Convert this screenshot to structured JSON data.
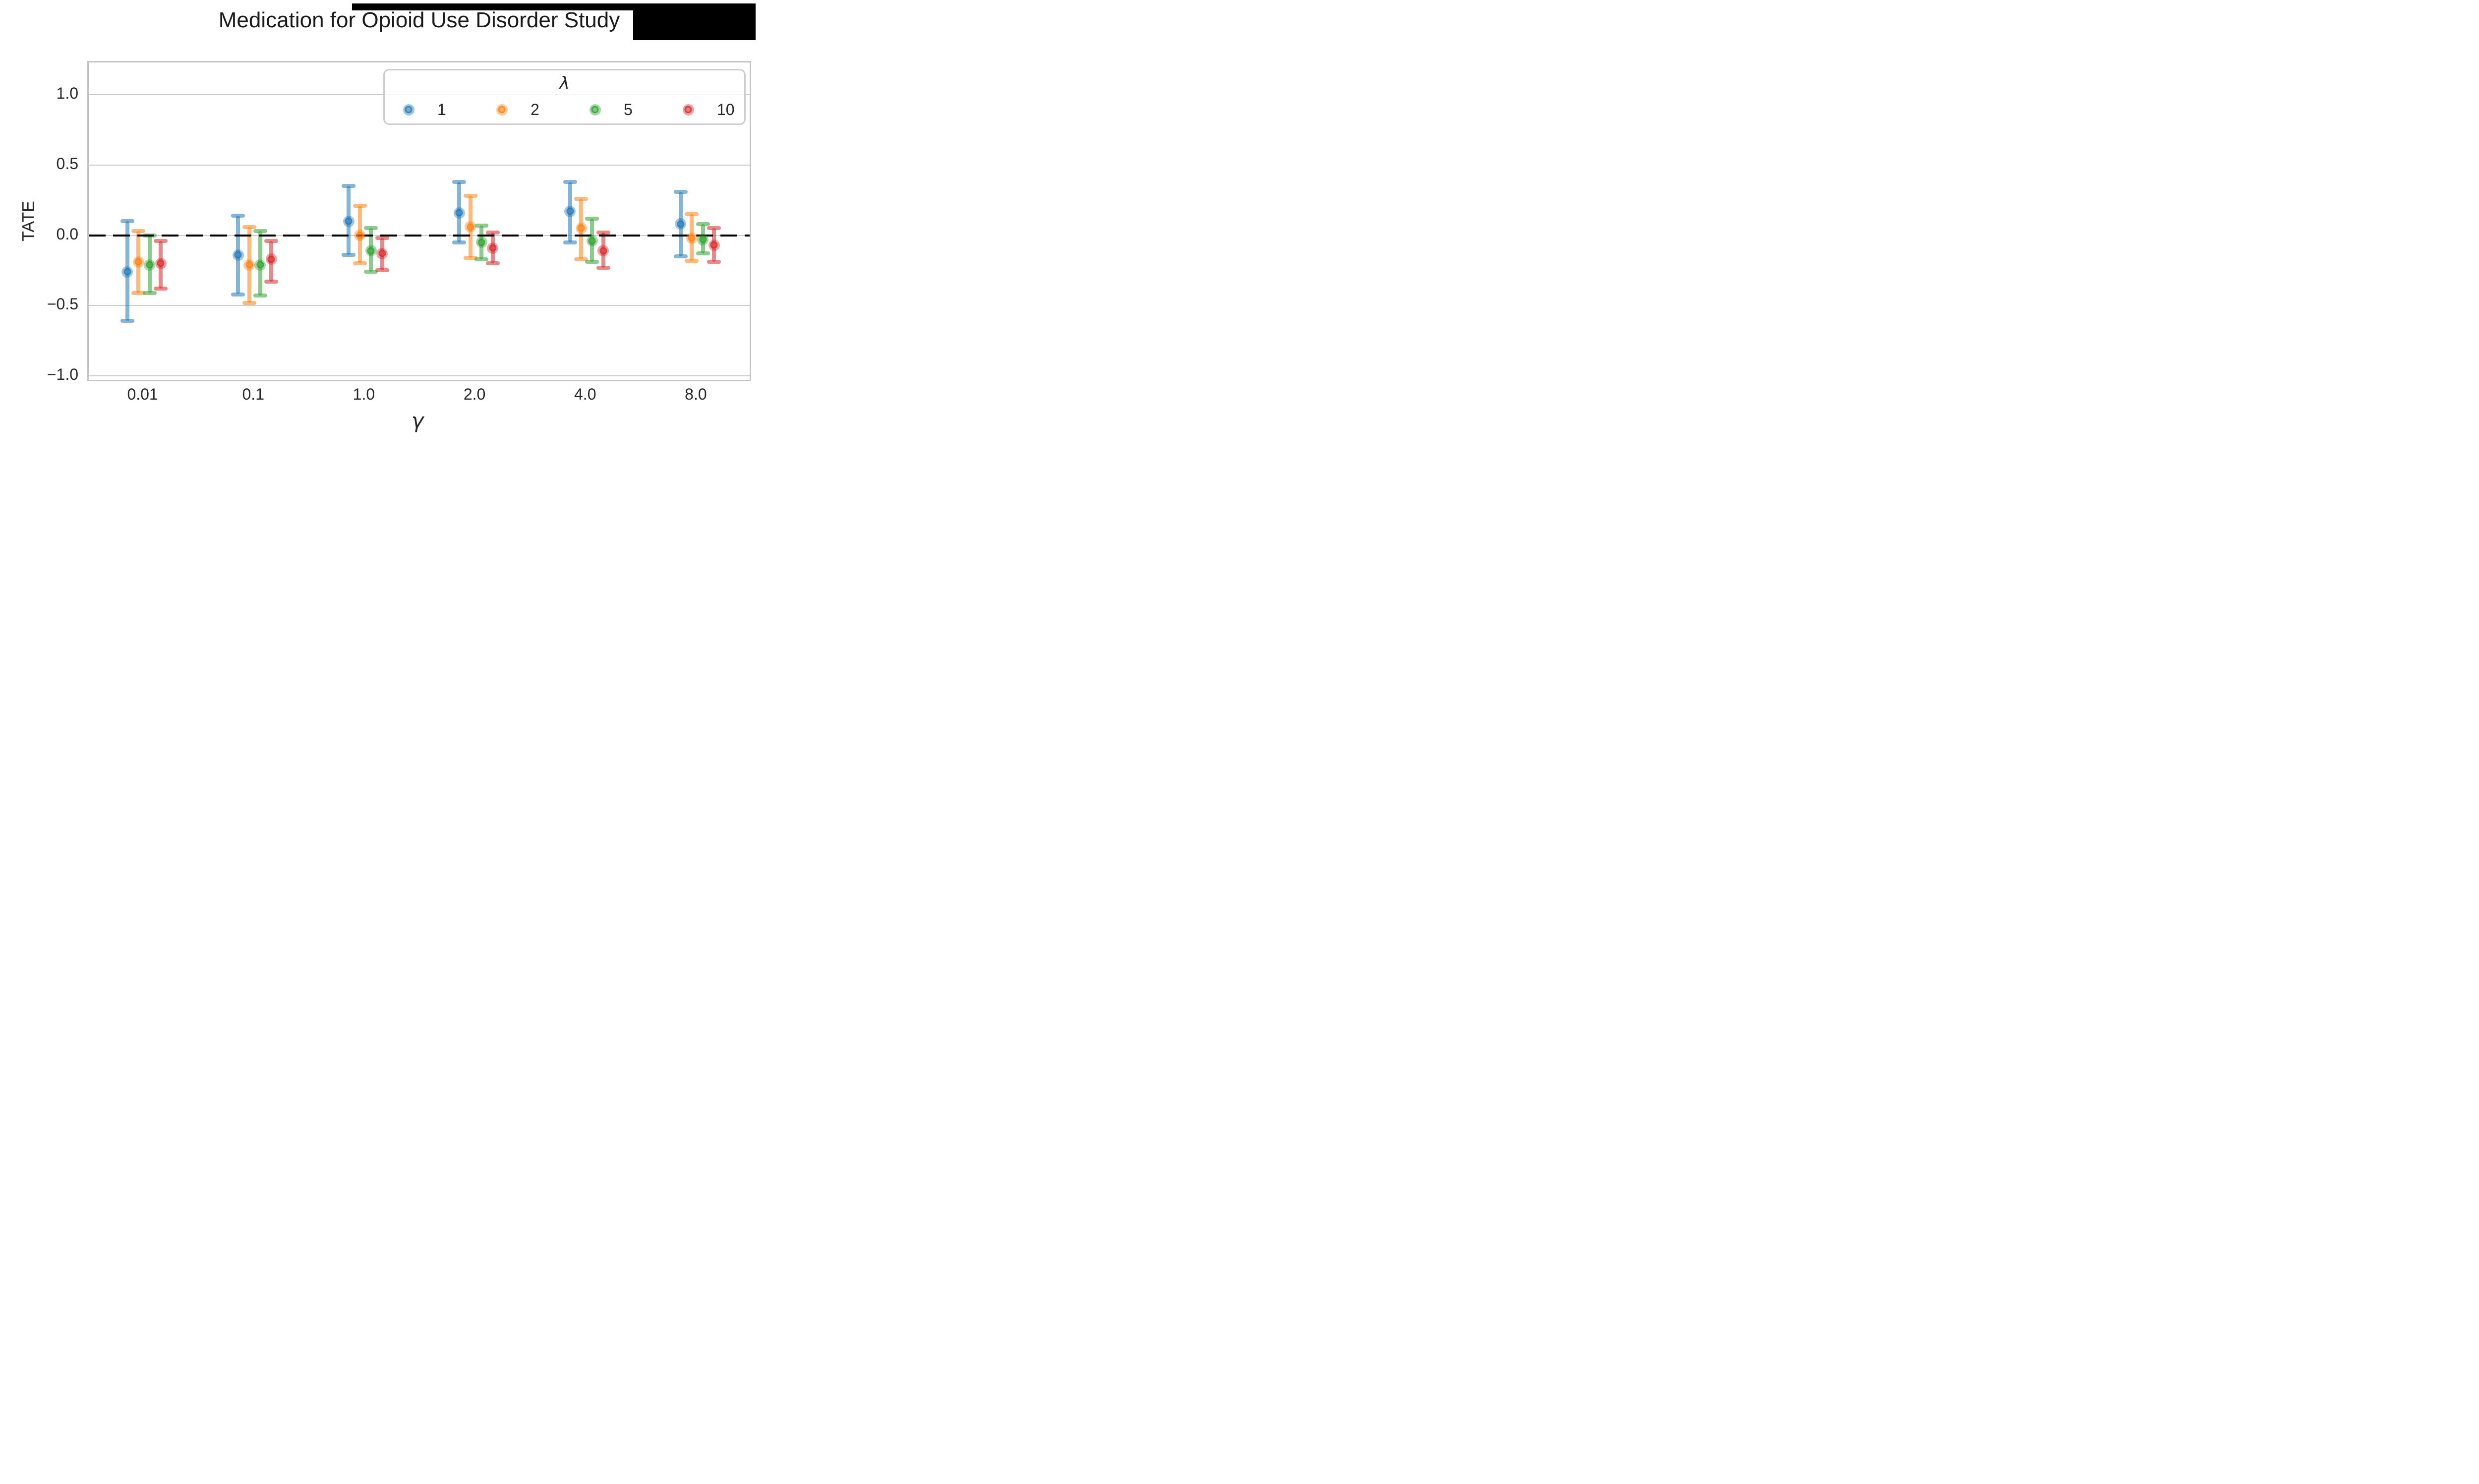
{
  "figure": {
    "title": "Medication for Opioid Use Disorder Study",
    "redaction_bars": 2
  },
  "chart_data": {
    "type": "scatter",
    "variant": "point-estimates-with-95ci-errorbars",
    "title": "Medication for Opioid Use Disorder Study",
    "xlabel": "γ",
    "ylabel": "TATE",
    "categories": [
      "0.01",
      "0.1",
      "1.0",
      "2.0",
      "4.0",
      "8.0"
    ],
    "yticks": [
      1.0,
      0.5,
      0.0,
      -0.5,
      -1.0
    ],
    "ytick_labels": [
      "1.0",
      "0.5",
      "0.0",
      "−0.5",
      "−1.0"
    ],
    "ylim": [
      -1.05,
      1.23
    ],
    "grid": true,
    "reference_line_y": 0.0,
    "reference_line_style": "dashed-black",
    "legend": {
      "title": "λ",
      "position": "upper-right",
      "entries": [
        {
          "label": "1",
          "color": "#1f77b4"
        },
        {
          "label": "2",
          "color": "#ff7f0e"
        },
        {
          "label": "5",
          "color": "#2ca02c"
        },
        {
          "label": "10",
          "color": "#d62728"
        }
      ]
    },
    "series": [
      {
        "name": "1",
        "color": "#1f77b4",
        "means": [
          -0.26,
          -0.14,
          0.1,
          0.16,
          0.17,
          0.08
        ],
        "ci_low": [
          -0.61,
          -0.42,
          -0.14,
          -0.05,
          -0.05,
          -0.15
        ],
        "ci_high": [
          0.1,
          0.14,
          0.35,
          0.38,
          0.38,
          0.31
        ]
      },
      {
        "name": "2",
        "color": "#ff7f0e",
        "means": [
          -0.19,
          -0.21,
          0.0,
          0.06,
          0.05,
          -0.02
        ],
        "ci_low": [
          -0.41,
          -0.48,
          -0.2,
          -0.16,
          -0.17,
          -0.18
        ],
        "ci_high": [
          0.03,
          0.06,
          0.21,
          0.28,
          0.26,
          0.15
        ]
      },
      {
        "name": "5",
        "color": "#2ca02c",
        "means": [
          -0.21,
          -0.21,
          -0.11,
          -0.05,
          -0.04,
          -0.03
        ],
        "ci_low": [
          -0.41,
          -0.43,
          -0.26,
          -0.17,
          -0.19,
          -0.13
        ],
        "ci_high": [
          0.0,
          0.03,
          0.05,
          0.07,
          0.12,
          0.08
        ]
      },
      {
        "name": "10",
        "color": "#d62728",
        "means": [
          -0.2,
          -0.17,
          -0.13,
          -0.09,
          -0.11,
          -0.07
        ],
        "ci_low": [
          -0.38,
          -0.33,
          -0.25,
          -0.2,
          -0.23,
          -0.19
        ],
        "ci_high": [
          -0.04,
          -0.04,
          -0.02,
          0.02,
          0.02,
          0.05
        ]
      }
    ]
  }
}
